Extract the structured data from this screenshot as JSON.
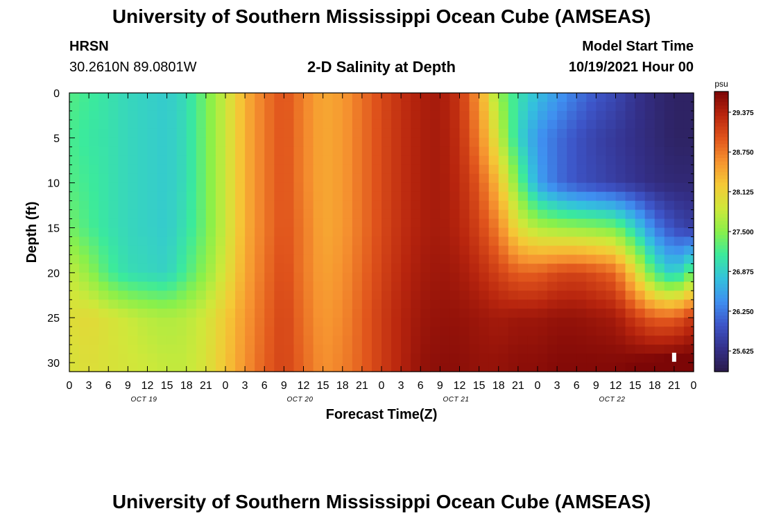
{
  "header": {
    "title": "University of Southern Mississippi Ocean Cube (AMSEAS)",
    "station": "HRSN",
    "coords": "30.2610N  89.0801W",
    "plot_title": "2-D Salinity at Depth",
    "start_label": "Model Start Time",
    "start_value": "10/19/2021 Hour 00"
  },
  "footer": {
    "title": "University of Southern Mississippi Ocean Cube (AMSEAS)"
  },
  "colors": {
    "ramp": [
      "#2a1a4a",
      "#34308a",
      "#3d55c8",
      "#3f8ff0",
      "#33c2dc",
      "#3bea9c",
      "#8af04a",
      "#cfe83a",
      "#f5c936",
      "#f69330",
      "#e0541c",
      "#b8250e",
      "#7c0606"
    ]
  },
  "chart_data": {
    "type": "heatmap",
    "title": "2-D Salinity at Depth",
    "xlabel": "Forecast Time(Z)",
    "ylabel": "Depth (ft)",
    "colorbar_unit": "psu",
    "xlim": [
      0,
      96
    ],
    "ylim": [
      0,
      31
    ],
    "x_tick_labels": [
      "0",
      "3",
      "6",
      "9",
      "12",
      "15",
      "18",
      "21",
      "0",
      "3",
      "6",
      "9",
      "12",
      "15",
      "18",
      "21",
      "0",
      "3",
      "6",
      "9",
      "12",
      "15",
      "18",
      "21",
      "0",
      "3",
      "6",
      "9",
      "12",
      "15",
      "18",
      "21",
      "0"
    ],
    "day_labels": [
      "OCT 19",
      "OCT 20",
      "OCT 21",
      "OCT 22"
    ],
    "y_ticks": [
      0,
      5,
      10,
      15,
      20,
      25,
      30
    ],
    "colorbar_ticks": [
      "29.375",
      "28.750",
      "28.125",
      "27.500",
      "26.875",
      "26.250",
      "25.625"
    ],
    "colorbar_range": [
      25.3,
      29.7
    ],
    "depths_ft": [
      0,
      5,
      10,
      15,
      20,
      25,
      30
    ],
    "hours": [
      0,
      3,
      6,
      9,
      12,
      15,
      18,
      21,
      24,
      27,
      30,
      33,
      36,
      39,
      42,
      45,
      48,
      51,
      54,
      57,
      60,
      63,
      66,
      69,
      72,
      75,
      78,
      81,
      84,
      87,
      90,
      93,
      96
    ],
    "salinity_psu": [
      [
        27.25,
        27.15,
        27.05,
        26.95,
        26.9,
        26.85,
        27.0,
        27.4,
        27.85,
        28.4,
        28.75,
        29.0,
        28.7,
        28.45,
        28.55,
        28.8,
        29.05,
        29.25,
        29.4,
        29.45,
        29.2,
        28.55,
        27.55,
        27.05,
        26.75,
        26.5,
        26.25,
        26.05,
        25.9,
        25.7,
        25.55,
        25.45,
        25.45
      ],
      [
        27.2,
        27.1,
        27.05,
        26.95,
        26.9,
        26.85,
        27.0,
        27.4,
        27.85,
        28.4,
        28.75,
        29.0,
        28.7,
        28.45,
        28.55,
        28.8,
        29.05,
        29.25,
        29.4,
        29.45,
        29.25,
        28.7,
        27.85,
        26.95,
        26.45,
        26.2,
        26.0,
        25.85,
        25.75,
        25.65,
        25.55,
        25.45,
        25.45
      ],
      [
        27.25,
        27.15,
        27.05,
        26.95,
        26.9,
        26.85,
        27.0,
        27.4,
        27.85,
        28.4,
        28.75,
        29.0,
        28.7,
        28.45,
        28.55,
        28.8,
        29.05,
        29.25,
        29.4,
        29.45,
        29.3,
        28.95,
        28.3,
        27.4,
        26.55,
        26.2,
        26.0,
        25.9,
        25.8,
        25.7,
        25.6,
        25.55,
        25.55
      ],
      [
        27.4,
        27.2,
        27.05,
        26.95,
        26.9,
        26.85,
        27.05,
        27.4,
        27.85,
        28.4,
        28.75,
        29.0,
        28.75,
        28.45,
        28.55,
        28.8,
        29.05,
        29.25,
        29.4,
        29.45,
        29.35,
        29.1,
        28.7,
        28.0,
        27.7,
        27.6,
        27.55,
        27.5,
        27.4,
        26.9,
        26.3,
        25.95,
        25.8
      ],
      [
        27.8,
        27.55,
        27.2,
        27.0,
        26.95,
        26.9,
        27.2,
        27.55,
        27.95,
        28.45,
        28.8,
        29.05,
        28.75,
        28.5,
        28.6,
        28.85,
        29.1,
        29.3,
        29.45,
        29.5,
        29.45,
        29.3,
        29.1,
        28.9,
        28.9,
        29.05,
        29.1,
        29.0,
        28.85,
        28.1,
        27.2,
        26.8,
        27.4
      ],
      [
        28.0,
        28.05,
        27.95,
        27.85,
        27.75,
        27.7,
        27.75,
        27.9,
        28.2,
        28.55,
        28.85,
        29.1,
        28.8,
        28.55,
        28.65,
        28.9,
        29.15,
        29.35,
        29.5,
        29.55,
        29.55,
        29.5,
        29.45,
        29.5,
        29.5,
        29.55,
        29.55,
        29.5,
        29.45,
        29.15,
        28.9,
        28.9,
        29.2
      ],
      [
        27.95,
        28.0,
        27.95,
        27.9,
        27.85,
        27.8,
        27.8,
        27.95,
        28.25,
        28.6,
        28.9,
        29.1,
        28.85,
        28.6,
        28.7,
        28.9,
        29.15,
        29.35,
        29.55,
        29.6,
        29.6,
        29.55,
        29.55,
        29.6,
        29.6,
        29.65,
        29.65,
        29.65,
        29.65,
        29.7,
        29.75,
        29.8,
        29.8
      ]
    ],
    "annotations": [
      "white marker near hour 93, depth 29.5 ft"
    ]
  }
}
